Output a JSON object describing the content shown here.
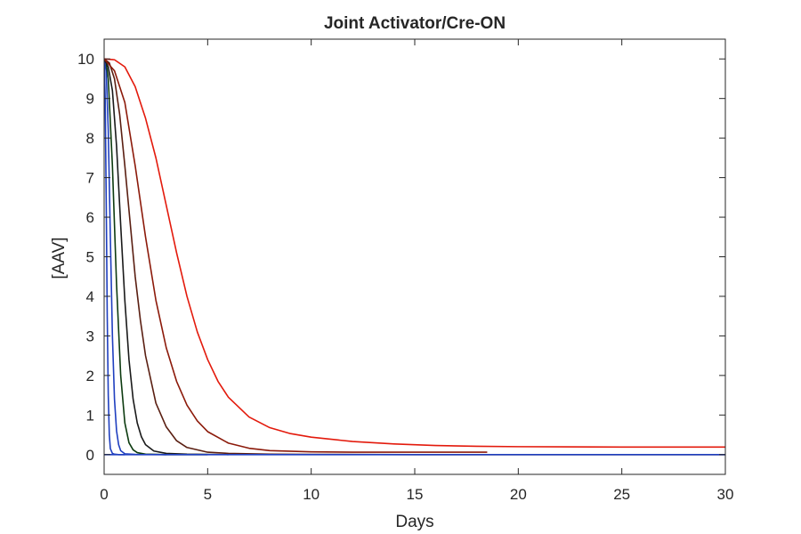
{
  "chart_data": {
    "type": "line",
    "title": "Joint Activator/Cre-ON",
    "xlabel": "Days",
    "ylabel": "[AAV]",
    "xlim": [
      0,
      30
    ],
    "ylim": [
      -0.5,
      10.5
    ],
    "xticks": [
      0,
      5,
      10,
      15,
      20,
      25,
      30
    ],
    "yticks": [
      0,
      1,
      2,
      3,
      4,
      5,
      6,
      7,
      8,
      9,
      10
    ],
    "grid": false,
    "box": true,
    "series": [
      {
        "color": "#1f3fbf",
        "x": [
          0,
          0.05,
          0.1,
          0.15,
          0.2,
          0.25,
          0.3,
          0.4,
          0.5,
          0.7,
          1.0
        ],
        "y": [
          10,
          9.0,
          6.5,
          3.5,
          1.5,
          0.5,
          0.15,
          0.03,
          0.01,
          0,
          0
        ]
      },
      {
        "color": "#1f3fbf",
        "x": [
          0,
          0.1,
          0.2,
          0.3,
          0.4,
          0.5,
          0.6,
          0.7,
          0.8,
          1.0,
          1.5,
          3
        ],
        "y": [
          10,
          9.7,
          8.2,
          5.5,
          3.0,
          1.4,
          0.6,
          0.25,
          0.1,
          0.02,
          0.005,
          0
        ]
      },
      {
        "color": "#0d3b10",
        "x": [
          0,
          0.1,
          0.2,
          0.4,
          0.6,
          0.8,
          1.0,
          1.2,
          1.4,
          1.6,
          2.0,
          3,
          5
        ],
        "y": [
          10,
          9.9,
          9.5,
          7.3,
          4.3,
          2.0,
          0.8,
          0.3,
          0.12,
          0.05,
          0.01,
          0,
          0
        ]
      },
      {
        "color": "#1a1a1a",
        "x": [
          0,
          0.2,
          0.4,
          0.6,
          0.8,
          1.0,
          1.2,
          1.4,
          1.6,
          1.8,
          2.0,
          2.4,
          3.0,
          4,
          6
        ],
        "y": [
          10,
          9.8,
          9.2,
          7.8,
          5.8,
          3.9,
          2.4,
          1.4,
          0.8,
          0.45,
          0.25,
          0.09,
          0.03,
          0.01,
          0
        ]
      },
      {
        "color": "#5a1f12",
        "x": [
          0,
          0.25,
          0.5,
          0.75,
          1.0,
          1.25,
          1.5,
          1.75,
          2.0,
          2.5,
          3.0,
          3.5,
          4.0,
          5.0,
          6.0,
          8.0,
          10,
          15,
          20,
          30
        ],
        "y": [
          10,
          9.9,
          9.5,
          8.6,
          7.3,
          5.9,
          4.5,
          3.4,
          2.5,
          1.3,
          0.7,
          0.35,
          0.18,
          0.06,
          0.03,
          0.01,
          0.005,
          0,
          0,
          0
        ]
      },
      {
        "color": "#8c1a0a",
        "x": [
          0,
          0.5,
          1.0,
          1.5,
          2.0,
          2.5,
          3.0,
          3.5,
          4.0,
          4.5,
          5.0,
          6.0,
          7.0,
          8.0,
          10,
          12,
          15,
          18.5
        ],
        "y": [
          10,
          9.7,
          8.9,
          7.3,
          5.5,
          3.9,
          2.7,
          1.85,
          1.25,
          0.85,
          0.58,
          0.29,
          0.16,
          0.1,
          0.07,
          0.06,
          0.06,
          0.06
        ]
      },
      {
        "color": "#e31a0c",
        "x": [
          0,
          0.5,
          1.0,
          1.5,
          2.0,
          2.5,
          3.0,
          3.5,
          4.0,
          4.5,
          5.0,
          5.5,
          6.0,
          7.0,
          8.0,
          9.0,
          10,
          12,
          14,
          16,
          18,
          20,
          25,
          30
        ],
        "y": [
          10,
          9.98,
          9.8,
          9.3,
          8.5,
          7.5,
          6.3,
          5.1,
          4.0,
          3.1,
          2.4,
          1.85,
          1.45,
          0.95,
          0.68,
          0.53,
          0.44,
          0.33,
          0.27,
          0.23,
          0.21,
          0.2,
          0.19,
          0.19
        ]
      },
      {
        "color": "#1f3fbf",
        "x": [
          0,
          30
        ],
        "y": [
          0,
          0
        ]
      }
    ]
  }
}
